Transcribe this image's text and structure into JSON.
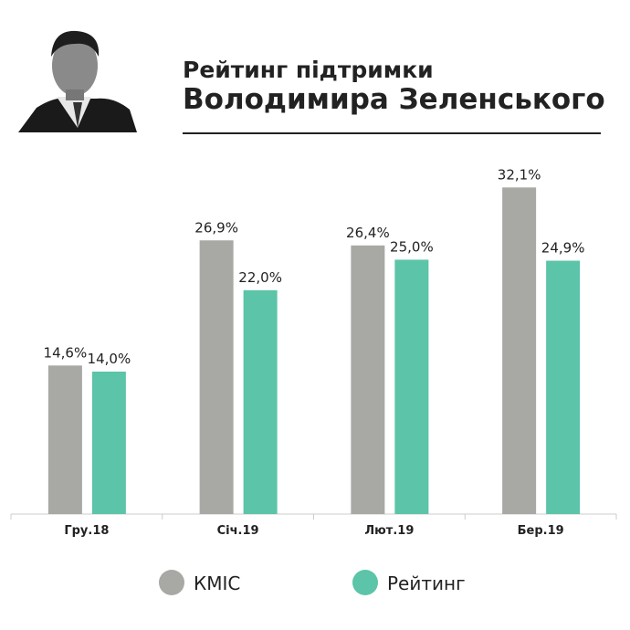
{
  "chart_data": {
    "type": "bar",
    "title": [
      "Рейтинг підтримки",
      "Володимира Зеленського"
    ],
    "categories": [
      "Гру.18",
      "Січ.19",
      "Лют.19",
      "Бер.19"
    ],
    "series": [
      {
        "name": "КМІС",
        "color": "#a8a8a4",
        "values": [
          14.6,
          26.9,
          26.4,
          32.1
        ],
        "value_labels": [
          "14,6%",
          "26,9%",
          "26,4%",
          "32,1%"
        ]
      },
      {
        "name": "Рейтинг",
        "color": "#5cc4a8",
        "values": [
          14.0,
          22.0,
          25.0,
          24.9
        ],
        "value_labels": [
          "14,0%",
          "22,0%",
          "25,0%",
          "24,9%"
        ]
      }
    ],
    "ylim": [
      0,
      35
    ]
  }
}
